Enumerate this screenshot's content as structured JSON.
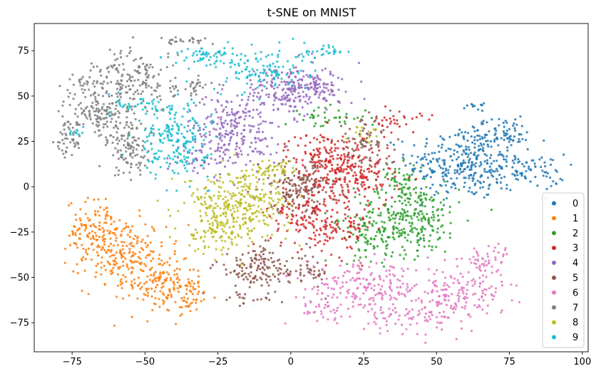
{
  "chart_data": {
    "type": "scatter",
    "title": "t-SNE on MNIST",
    "xlabel": "",
    "ylabel": "",
    "xlim": [
      -88,
      102
    ],
    "ylim": [
      -91,
      90
    ],
    "x_ticks": [
      -75,
      -50,
      -25,
      0,
      25,
      50,
      75,
      100
    ],
    "y_ticks": [
      -75,
      -50,
      -25,
      0,
      25,
      50,
      75
    ],
    "x_tick_labels": [
      "−75",
      "−50",
      "−25",
      "0",
      "25",
      "50",
      "75",
      "100"
    ],
    "y_tick_labels": [
      "−75",
      "−50",
      "−25",
      "0",
      "25",
      "50",
      "75"
    ],
    "grid": false,
    "legend_position": "lower-right",
    "series": [
      {
        "name": "0",
        "color": "#1f77b4",
        "clusters": [
          {
            "cx": 60,
            "cy": 13,
            "sx": 10,
            "sy": 10,
            "n": 320
          },
          {
            "cx": 82,
            "cy": 8,
            "sx": 6,
            "sy": 5,
            "n": 70
          },
          {
            "cx": 70,
            "cy": 30,
            "sx": 6,
            "sy": 4,
            "n": 50
          },
          {
            "cx": 63,
            "cy": 44,
            "sx": 1.5,
            "sy": 1,
            "n": 12
          },
          {
            "cx": 78,
            "cy": 28,
            "sx": 3,
            "sy": 2,
            "n": 15
          }
        ]
      },
      {
        "name": "1",
        "color": "#ff7f0e",
        "clusters": [
          {
            "cx": -67,
            "cy": -25,
            "sx": 5,
            "sy": 9,
            "n": 130
          },
          {
            "cx": -57,
            "cy": -38,
            "sx": 7,
            "sy": 10,
            "n": 170
          },
          {
            "cx": -45,
            "cy": -52,
            "sx": 6,
            "sy": 9,
            "n": 140
          },
          {
            "cx": -35,
            "cy": -60,
            "sx": 4,
            "sy": 5,
            "n": 50
          }
        ]
      },
      {
        "name": "2",
        "color": "#2ca02c",
        "clusters": [
          {
            "cx": 40,
            "cy": -17,
            "sx": 9,
            "sy": 10,
            "n": 300
          },
          {
            "cx": 28,
            "cy": -28,
            "sx": 5,
            "sy": 6,
            "n": 60
          },
          {
            "cx": 12,
            "cy": 38,
            "sx": 7,
            "sy": 3,
            "n": 40
          },
          {
            "cx": 38,
            "cy": 5,
            "sx": 4,
            "sy": 4,
            "n": 40
          }
        ]
      },
      {
        "name": "3",
        "color": "#d62728",
        "clusters": [
          {
            "cx": 5,
            "cy": -15,
            "sx": 6,
            "sy": 9,
            "n": 130
          },
          {
            "cx": 20,
            "cy": 5,
            "sx": 8,
            "sy": 9,
            "n": 200
          },
          {
            "cx": 12,
            "cy": 18,
            "sx": 7,
            "sy": 6,
            "n": 120
          },
          {
            "cx": 18,
            "cy": -25,
            "sx": 5,
            "sy": 7,
            "n": 70
          },
          {
            "cx": 37,
            "cy": 36,
            "sx": 4,
            "sy": 3,
            "n": 30
          }
        ]
      },
      {
        "name": "4",
        "color": "#9467bd",
        "clusters": [
          {
            "cx": -20,
            "cy": 30,
            "sx": 8,
            "sy": 10,
            "n": 240
          },
          {
            "cx": -2,
            "cy": 53,
            "sx": 7,
            "sy": 7,
            "n": 180
          },
          {
            "cx": 10,
            "cy": 55,
            "sx": 6,
            "sy": 5,
            "n": 80
          },
          {
            "cx": -30,
            "cy": 15,
            "sx": 4,
            "sy": 3,
            "n": 30
          }
        ]
      },
      {
        "name": "5",
        "color": "#8c564b",
        "clusters": [
          {
            "cx": 3,
            "cy": 0,
            "sx": 7,
            "sy": 7,
            "n": 170
          },
          {
            "cx": -10,
            "cy": -45,
            "sx": 8,
            "sy": 6,
            "n": 150
          },
          {
            "cx": 25,
            "cy": 25,
            "sx": 5,
            "sy": 6,
            "n": 80
          },
          {
            "cx": 7,
            "cy": -48,
            "sx": 3,
            "sy": 4,
            "n": 30
          },
          {
            "cx": -15,
            "cy": -62,
            "sx": 5,
            "sy": 2,
            "n": 20
          }
        ]
      },
      {
        "name": "6",
        "color": "#e377c2",
        "clusters": [
          {
            "cx": 25,
            "cy": -55,
            "sx": 10,
            "sy": 6,
            "n": 170
          },
          {
            "cx": 55,
            "cy": -60,
            "sx": 9,
            "sy": 7,
            "n": 170
          },
          {
            "cx": 38,
            "cy": -72,
            "sx": 8,
            "sy": 4,
            "n": 70
          },
          {
            "cx": 67,
            "cy": -42,
            "sx": 4,
            "sy": 6,
            "n": 60
          },
          {
            "cx": 10,
            "cy": -68,
            "sx": 5,
            "sy": 3,
            "n": 30
          }
        ]
      },
      {
        "name": "7",
        "color": "#7f7f7f",
        "clusters": [
          {
            "cx": -65,
            "cy": 40,
            "sx": 6,
            "sy": 7,
            "n": 150
          },
          {
            "cx": -53,
            "cy": 58,
            "sx": 7,
            "sy": 9,
            "n": 170
          },
          {
            "cx": -55,
            "cy": 20,
            "sx": 4,
            "sy": 7,
            "n": 100
          },
          {
            "cx": -77,
            "cy": 25,
            "sx": 2,
            "sy": 5,
            "n": 40
          },
          {
            "cx": -70,
            "cy": 57,
            "sx": 4,
            "sy": 3,
            "n": 30
          },
          {
            "cx": -37,
            "cy": 80,
            "sx": 4,
            "sy": 1,
            "n": 25
          },
          {
            "cx": -33,
            "cy": 55,
            "sx": 3,
            "sy": 3,
            "n": 25
          }
        ]
      },
      {
        "name": "8",
        "color": "#bcbd22",
        "clusters": [
          {
            "cx": -18,
            "cy": -10,
            "sx": 9,
            "sy": 9,
            "n": 300
          },
          {
            "cx": -25,
            "cy": -25,
            "sx": 5,
            "sy": 6,
            "n": 80
          },
          {
            "cx": -5,
            "cy": 10,
            "sx": 5,
            "sy": 3,
            "n": 50
          },
          {
            "cx": 25,
            "cy": 30,
            "sx": 3,
            "sy": 2,
            "n": 15
          }
        ]
      },
      {
        "name": "9",
        "color": "#17becf",
        "clusters": [
          {
            "cx": -40,
            "cy": 25,
            "sx": 6,
            "sy": 10,
            "n": 200
          },
          {
            "cx": -10,
            "cy": 65,
            "sx": 8,
            "sy": 6,
            "n": 120
          },
          {
            "cx": -30,
            "cy": 72,
            "sx": 5,
            "sy": 3,
            "n": 50
          },
          {
            "cx": -50,
            "cy": 45,
            "sx": 5,
            "sy": 3,
            "n": 40
          },
          {
            "cx": 12,
            "cy": 75,
            "sx": 5,
            "sy": 2,
            "n": 30
          },
          {
            "cx": -73,
            "cy": 30,
            "sx": 2,
            "sy": 2,
            "n": 10
          }
        ]
      }
    ]
  }
}
